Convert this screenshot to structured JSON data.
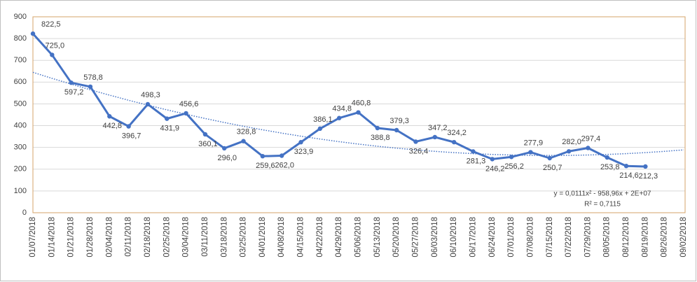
{
  "chart_data": {
    "type": "line",
    "categories": [
      "01/07/2018",
      "01/14/2018",
      "01/21/2018",
      "01/28/2018",
      "02/04/2018",
      "02/11/2018",
      "02/18/2018",
      "02/25/2018",
      "03/04/2018",
      "03/11/2018",
      "03/18/2018",
      "03/25/2018",
      "04/01/2018",
      "04/08/2018",
      "04/15/2018",
      "04/22/2018",
      "04/29/2018",
      "05/06/2018",
      "05/13/2018",
      "05/20/2018",
      "05/27/2018",
      "06/03/2018",
      "06/10/2018",
      "06/17/2018",
      "06/24/2018",
      "07/01/2018",
      "07/08/2018",
      "07/15/2018",
      "07/22/2018",
      "07/29/2018",
      "08/05/2018",
      "08/12/2018",
      "08/19/2018",
      "08/26/2018",
      "09/02/2018"
    ],
    "series": [
      {
        "color": "#4472c4",
        "values": [
          822.5,
          725.0,
          597.2,
          578.8,
          442.8,
          396.7,
          498.3,
          431.9,
          456.6,
          360.1,
          296.0,
          328.8,
          259.6,
          262.0,
          323.9,
          386.1,
          434.8,
          460.8,
          388.8,
          379.3,
          326.4,
          347.2,
          324.2,
          281.3,
          246.2,
          256.2,
          277.9,
          250.7,
          282.0,
          297.4,
          253.8,
          214.6,
          212.3,
          null,
          null
        ],
        "value_labels": [
          "822,5",
          "725,0",
          "597,2",
          "578,8",
          "442,8",
          "396,7",
          "498,3",
          "431,9",
          "456,6",
          "360,1",
          "296,0",
          "328,8",
          "259,6",
          "262,0",
          "323,9",
          "386,1",
          "434,8",
          "460,8",
          "388,8",
          "379,3",
          "326,4",
          "347,2",
          "324,2",
          "281,3",
          "246,2",
          "256,2",
          "277,9",
          "250,7",
          "282,0",
          "297,4",
          "253,8",
          "214,6",
          "212,3",
          null,
          null
        ]
      }
    ],
    "trendline": {
      "color": "#4472c4",
      "equation": "y = 0,0111x² - 958,96x + 2E+07",
      "r_squared": "R² = 0,7115",
      "values": [
        645.0,
        617.2,
        590.5,
        564.8,
        540.2,
        516.6,
        494.1,
        472.6,
        452.2,
        432.8,
        414.4,
        397.1,
        380.9,
        365.7,
        351.6,
        338.5,
        326.4,
        315.4,
        305.4,
        296.5,
        288.7,
        281.9,
        276.1,
        271.4,
        267.7,
        265.1,
        263.5,
        263.0,
        263.5,
        265.1,
        267.7,
        271.4,
        276.1,
        281.9,
        288.7
      ]
    },
    "ylim": [
      0,
      900
    ],
    "yticks": [
      0,
      100,
      200,
      300,
      400,
      500,
      600,
      700,
      800,
      900
    ],
    "grid": true
  }
}
